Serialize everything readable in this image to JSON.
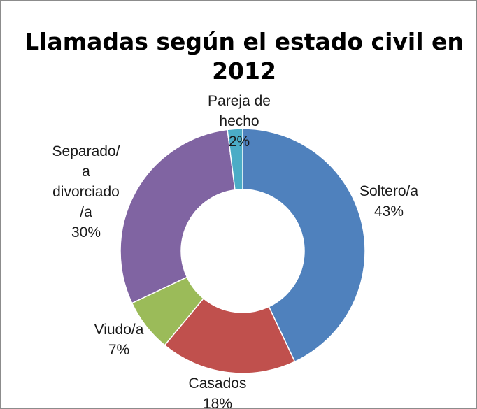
{
  "chart_data": {
    "type": "pie",
    "variant": "doughnut",
    "title": "Llamadas según el estado civil en 2012",
    "title_lines": [
      "Llamadas según el estado civil en",
      "2012"
    ],
    "slices": [
      {
        "category": "Soltero/a",
        "value": 43,
        "label_lines": [
          "Soltero/a",
          "43%"
        ],
        "color": "#4F81BD"
      },
      {
        "category": "Casados",
        "value": 18,
        "label_lines": [
          "Casados",
          "18%"
        ],
        "color": "#C0504D"
      },
      {
        "category": "Viudo/a",
        "value": 7,
        "label_lines": [
          "Viudo/a",
          "7%"
        ],
        "color": "#9BBB59"
      },
      {
        "category": "Separado/a divorciado/a",
        "value": 30,
        "label_lines": [
          "Separado/",
          "a",
          "divorciado",
          "/a",
          "30%"
        ],
        "color": "#8064A2"
      },
      {
        "category": "Pareja de hecho",
        "value": 2,
        "label_lines": [
          "Pareja de",
          "hecho",
          "2%"
        ],
        "color": "#4BACC6"
      }
    ],
    "legend": "none",
    "data_labels": "category and percentage"
  }
}
